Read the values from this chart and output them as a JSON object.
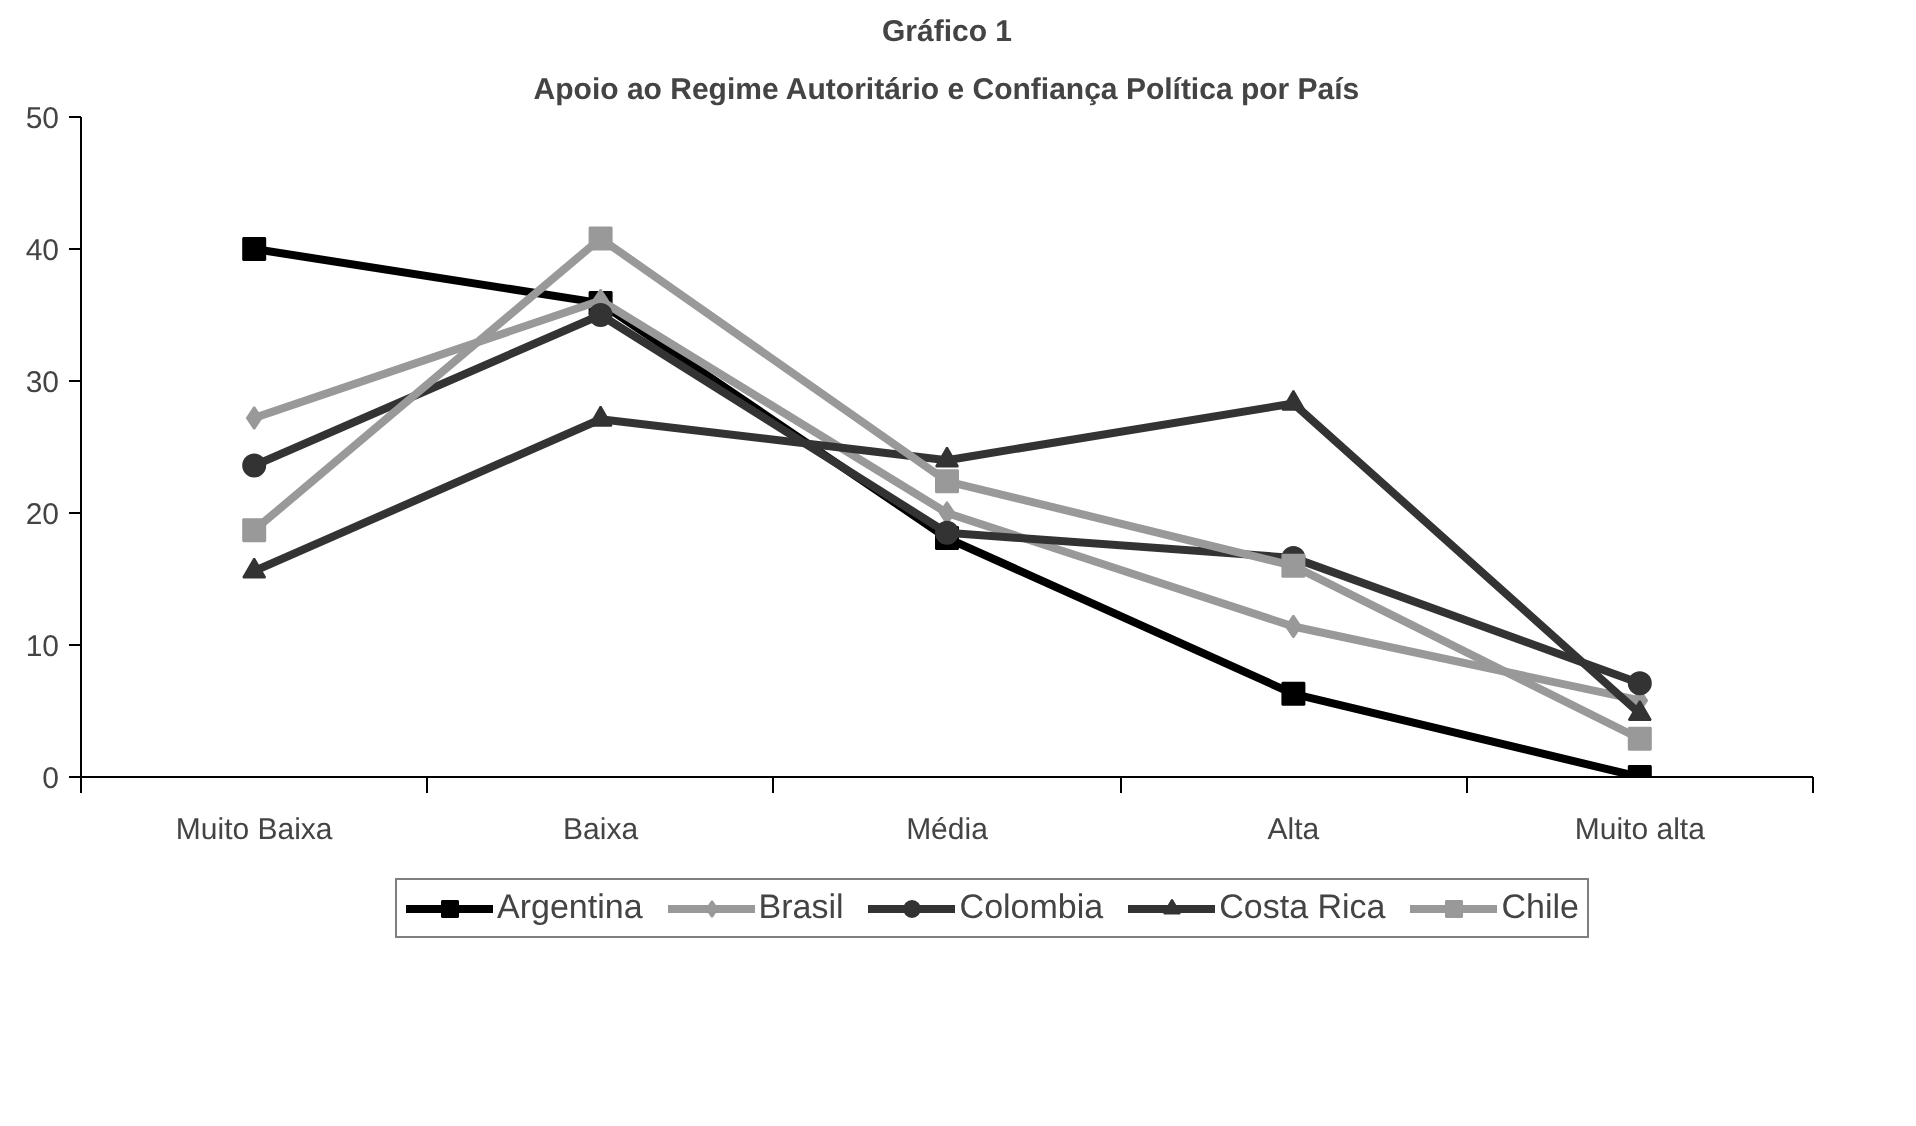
{
  "chart_data": {
    "type": "line",
    "title": "Gráfico 1",
    "subtitle": "Apoio ao Regime Autoritário e Confiança Política por País",
    "categories": [
      "Muito Baixa",
      "Baixa",
      "Média",
      "Alta",
      "Muito alta"
    ],
    "ylim": [
      0,
      50
    ],
    "yticks": [
      0,
      10,
      20,
      30,
      40,
      50
    ],
    "grid": false,
    "legend": "bottom",
    "line_style": "solid",
    "series": [
      {
        "name": "Argentina",
        "color": "#000000",
        "marker": "square",
        "values": [
          40,
          35.9,
          18.1,
          6.3,
          0
        ]
      },
      {
        "name": "Brasil",
        "color": "#999999",
        "marker": "diamond",
        "values": [
          27.2,
          36.1,
          20,
          11.4,
          5.8
        ]
      },
      {
        "name": "Colombia",
        "color": "#333333",
        "marker": "circle",
        "values": [
          23.6,
          35,
          18.5,
          16.6,
          7.1
        ]
      },
      {
        "name": "Costa Rica",
        "color": "#333333",
        "marker": "triangle",
        "values": [
          15.6,
          27.1,
          24,
          28.3,
          4.8
        ]
      },
      {
        "name": "Chile",
        "color": "#999999",
        "marker": "square",
        "values": [
          18.7,
          40.8,
          22.4,
          16,
          2.9
        ]
      }
    ]
  }
}
